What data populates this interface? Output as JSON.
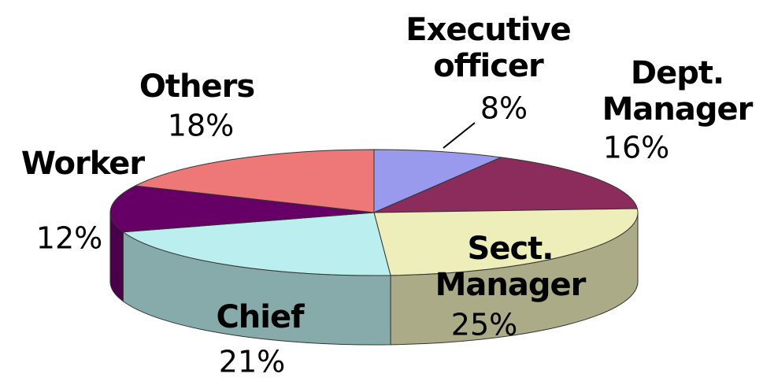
{
  "chart_data": {
    "type": "pie",
    "categories": [
      "Executive officer",
      "Dept. Manager",
      "Sect. Manager",
      "Chief",
      "Worker",
      "Others"
    ],
    "values": [
      8,
      16,
      25,
      21,
      12,
      18
    ],
    "value_labels": [
      "8%",
      "16%",
      "25%",
      "21%",
      "12%",
      "18%"
    ],
    "colors": [
      "#9999ee",
      "#8b2c5c",
      "#eeeebb",
      "#bbeeee",
      "#660066",
      "#ee7777"
    ]
  }
}
